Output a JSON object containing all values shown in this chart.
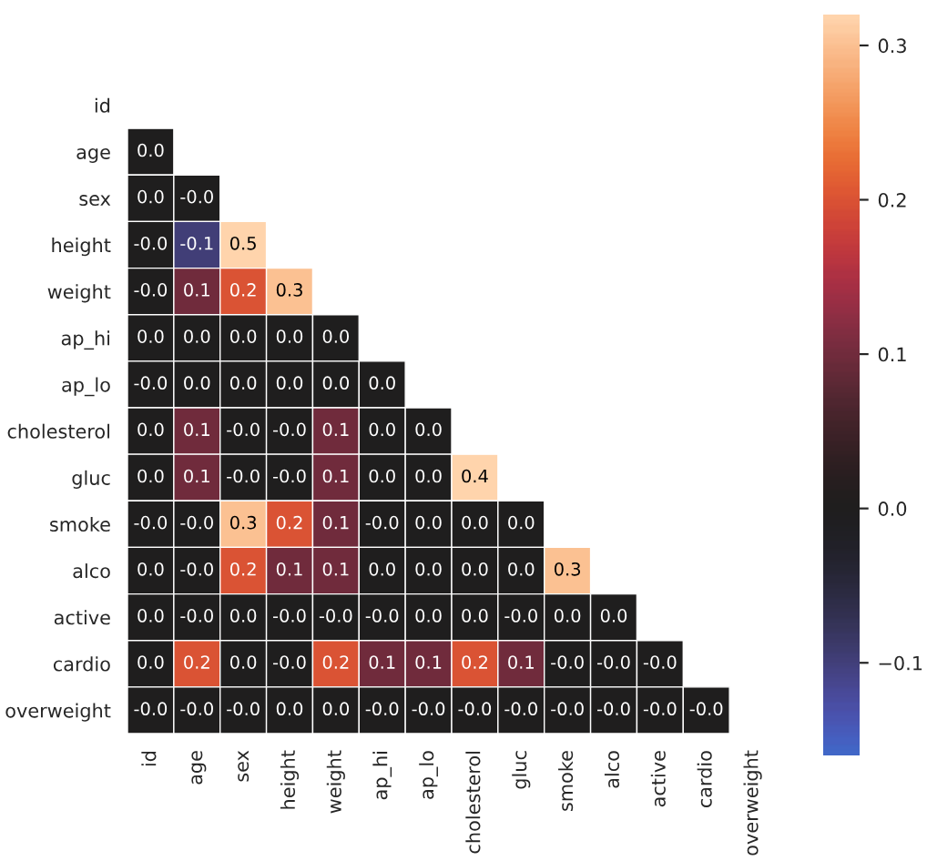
{
  "chart_data": {
    "type": "heatmap",
    "categories": [
      "id",
      "age",
      "sex",
      "height",
      "weight",
      "ap_hi",
      "ap_lo",
      "cholesterol",
      "gluc",
      "smoke",
      "alco",
      "active",
      "cardio",
      "overweight"
    ],
    "y_categories": [
      "id",
      "age",
      "sex",
      "height",
      "weight",
      "ap_hi",
      "ap_lo",
      "cholesterol",
      "gluc",
      "smoke",
      "alco",
      "active",
      "cardio",
      "overweight"
    ],
    "cells": [
      [
        null,
        null,
        null,
        null,
        null,
        null,
        null,
        null,
        null,
        null,
        null,
        null,
        null,
        null
      ],
      [
        0.0,
        null,
        null,
        null,
        null,
        null,
        null,
        null,
        null,
        null,
        null,
        null,
        null,
        null
      ],
      [
        0.0,
        -0.0,
        null,
        null,
        null,
        null,
        null,
        null,
        null,
        null,
        null,
        null,
        null,
        null
      ],
      [
        -0.0,
        -0.1,
        0.5,
        null,
        null,
        null,
        null,
        null,
        null,
        null,
        null,
        null,
        null,
        null
      ],
      [
        -0.0,
        0.1,
        0.2,
        0.3,
        null,
        null,
        null,
        null,
        null,
        null,
        null,
        null,
        null,
        null
      ],
      [
        0.0,
        0.0,
        0.0,
        0.0,
        0.0,
        null,
        null,
        null,
        null,
        null,
        null,
        null,
        null,
        null
      ],
      [
        -0.0,
        0.0,
        0.0,
        0.0,
        0.0,
        0.0,
        null,
        null,
        null,
        null,
        null,
        null,
        null,
        null
      ],
      [
        0.0,
        0.1,
        -0.0,
        -0.0,
        0.1,
        0.0,
        0.0,
        null,
        null,
        null,
        null,
        null,
        null,
        null
      ],
      [
        0.0,
        0.1,
        -0.0,
        -0.0,
        0.1,
        0.0,
        0.0,
        0.4,
        null,
        null,
        null,
        null,
        null,
        null
      ],
      [
        -0.0,
        -0.0,
        0.3,
        0.2,
        0.1,
        -0.0,
        0.0,
        0.0,
        0.0,
        null,
        null,
        null,
        null,
        null
      ],
      [
        0.0,
        -0.0,
        0.2,
        0.1,
        0.1,
        0.0,
        0.0,
        0.0,
        0.0,
        0.3,
        null,
        null,
        null,
        null
      ],
      [
        0.0,
        -0.0,
        0.0,
        -0.0,
        -0.0,
        -0.0,
        0.0,
        0.0,
        -0.0,
        0.0,
        0.0,
        null,
        null,
        null
      ],
      [
        0.0,
        0.2,
        0.0,
        -0.0,
        0.2,
        0.1,
        0.1,
        0.2,
        0.1,
        -0.0,
        -0.0,
        -0.0,
        null,
        null
      ],
      [
        -0.0,
        -0.0,
        -0.0,
        0.0,
        0.0,
        -0.0,
        -0.0,
        -0.0,
        -0.0,
        -0.0,
        -0.0,
        -0.0,
        -0.0,
        null
      ]
    ],
    "cell_labels": [
      [
        null,
        null,
        null,
        null,
        null,
        null,
        null,
        null,
        null,
        null,
        null,
        null,
        null,
        null
      ],
      [
        "0.0",
        null,
        null,
        null,
        null,
        null,
        null,
        null,
        null,
        null,
        null,
        null,
        null,
        null
      ],
      [
        "0.0",
        "-0.0",
        null,
        null,
        null,
        null,
        null,
        null,
        null,
        null,
        null,
        null,
        null,
        null
      ],
      [
        "-0.0",
        "-0.1",
        "0.5",
        null,
        null,
        null,
        null,
        null,
        null,
        null,
        null,
        null,
        null,
        null
      ],
      [
        "-0.0",
        "0.1",
        "0.2",
        "0.3",
        null,
        null,
        null,
        null,
        null,
        null,
        null,
        null,
        null,
        null
      ],
      [
        "0.0",
        "0.0",
        "0.0",
        "0.0",
        "0.0",
        null,
        null,
        null,
        null,
        null,
        null,
        null,
        null,
        null
      ],
      [
        "-0.0",
        "0.0",
        "0.0",
        "0.0",
        "0.0",
        "0.0",
        null,
        null,
        null,
        null,
        null,
        null,
        null,
        null
      ],
      [
        "0.0",
        "0.1",
        "-0.0",
        "-0.0",
        "0.1",
        "0.0",
        "0.0",
        null,
        null,
        null,
        null,
        null,
        null,
        null
      ],
      [
        "0.0",
        "0.1",
        "-0.0",
        "-0.0",
        "0.1",
        "0.0",
        "0.0",
        "0.4",
        null,
        null,
        null,
        null,
        null,
        null
      ],
      [
        "-0.0",
        "-0.0",
        "0.3",
        "0.2",
        "0.1",
        "-0.0",
        "0.0",
        "0.0",
        "0.0",
        null,
        null,
        null,
        null,
        null
      ],
      [
        "0.0",
        "-0.0",
        "0.2",
        "0.1",
        "0.1",
        "0.0",
        "0.0",
        "0.0",
        "0.0",
        "0.3",
        null,
        null,
        null,
        null
      ],
      [
        "0.0",
        "-0.0",
        "0.0",
        "-0.0",
        "-0.0",
        "-0.0",
        "0.0",
        "0.0",
        "-0.0",
        "0.0",
        "0.0",
        null,
        null,
        null
      ],
      [
        "0.0",
        "0.2",
        "0.0",
        "-0.0",
        "0.2",
        "0.1",
        "0.1",
        "0.2",
        "0.1",
        "-0.0",
        "-0.0",
        "-0.0",
        null,
        null
      ],
      [
        "-0.0",
        "-0.0",
        "-0.0",
        "0.0",
        "0.0",
        "-0.0",
        "-0.0",
        "-0.0",
        "-0.0",
        "-0.0",
        "-0.0",
        "-0.0",
        "-0.0",
        null
      ]
    ],
    "data_labels": true,
    "clim": [
      -0.16,
      0.32
    ],
    "cticks": [
      {
        "value": -0.1,
        "label": "−0.1"
      },
      {
        "value": 0.0,
        "label": "0.0"
      },
      {
        "value": 0.1,
        "label": "0.1"
      },
      {
        "value": 0.2,
        "label": "0.2"
      },
      {
        "value": 0.3,
        "label": "0.3"
      }
    ]
  }
}
